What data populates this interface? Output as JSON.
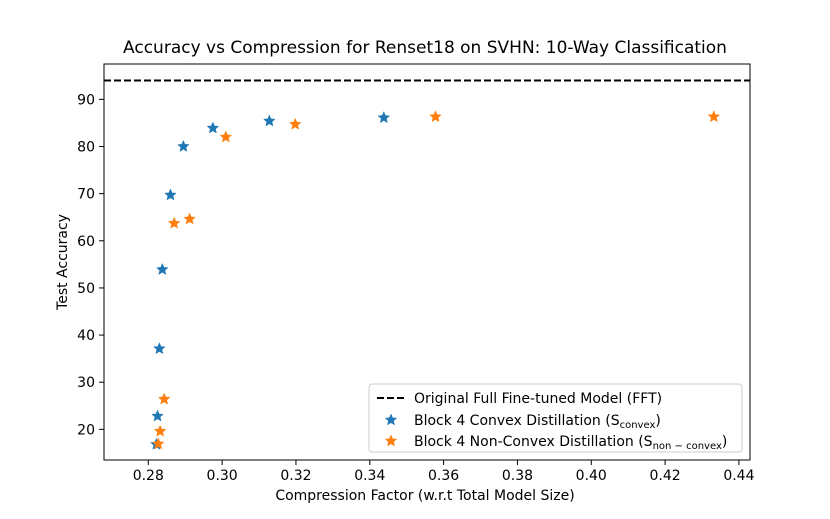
{
  "chart_data": {
    "type": "scatter",
    "title": "Accuracy vs Compression for Renset18 on SVHN: 10-Way Classification",
    "xlabel": "Compression Factor (w.r.t Total Model Size)",
    "ylabel": "Test Accuracy",
    "xlim": [
      0.268,
      0.443
    ],
    "ylim": [
      13.5,
      97.5
    ],
    "xticks": [
      "0.28",
      "0.30",
      "0.32",
      "0.34",
      "0.36",
      "0.38",
      "0.40",
      "0.42",
      "0.44"
    ],
    "yticks": [
      "20",
      "30",
      "40",
      "50",
      "60",
      "70",
      "80",
      "90"
    ],
    "grid": false,
    "legend_position": "lower-right",
    "reference_line": {
      "name": "Original Full Fine-tuned Model (FFT)",
      "y": 94.0,
      "style": "dashed",
      "color": "#000000"
    },
    "series": [
      {
        "legend_main": "Block 4 Convex Distillation (S",
        "legend_sub": "convex",
        "legend_tail": ")",
        "color": "#1f77b4",
        "marker": "star",
        "points": [
          {
            "x": 0.2822,
            "y": 16.8
          },
          {
            "x": 0.2825,
            "y": 22.8
          },
          {
            "x": 0.283,
            "y": 37.1
          },
          {
            "x": 0.2838,
            "y": 53.9
          },
          {
            "x": 0.286,
            "y": 69.7
          },
          {
            "x": 0.2895,
            "y": 80.0
          },
          {
            "x": 0.2975,
            "y": 83.9
          },
          {
            "x": 0.3128,
            "y": 85.4
          },
          {
            "x": 0.3438,
            "y": 86.1
          }
        ]
      },
      {
        "legend_main": "Block 4 Non-Convex Distillation (S",
        "legend_sub": "non − convex",
        "legend_tail": ")",
        "color": "#ff7f0e",
        "marker": "star",
        "points": [
          {
            "x": 0.2827,
            "y": 16.9
          },
          {
            "x": 0.2832,
            "y": 19.6
          },
          {
            "x": 0.2843,
            "y": 26.4
          },
          {
            "x": 0.287,
            "y": 63.7
          },
          {
            "x": 0.2912,
            "y": 64.6
          },
          {
            "x": 0.301,
            "y": 82.0
          },
          {
            "x": 0.3198,
            "y": 84.7
          },
          {
            "x": 0.3578,
            "y": 86.3
          },
          {
            "x": 0.4332,
            "y": 86.3
          }
        ]
      }
    ]
  }
}
